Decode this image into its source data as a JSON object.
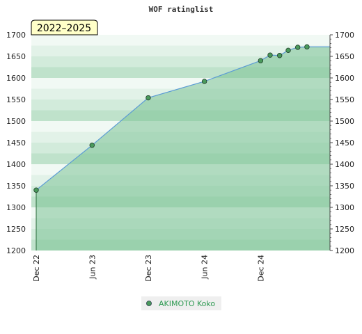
{
  "chart_data": {
    "type": "area",
    "title": "WOF ratinglist",
    "period_badge": "2022–2025",
    "ylim": [
      1200,
      1700
    ],
    "y_ticks": [
      1200,
      1250,
      1300,
      1350,
      1400,
      1450,
      1500,
      1550,
      1600,
      1650,
      1700
    ],
    "x_ticks": [
      {
        "label": "Dec 22",
        "date": "2022-12-01"
      },
      {
        "label": "Jun 23",
        "date": "2023-06-01"
      },
      {
        "label": "Dec 23",
        "date": "2023-12-01"
      },
      {
        "label": "Jun 24",
        "date": "2024-06-01"
      },
      {
        "label": "Dec 24",
        "date": "2024-12-01"
      }
    ],
    "xlim": [
      "2022-12-01",
      "2025-07-15"
    ],
    "series": [
      {
        "name": "AKIMOTO Koko",
        "points": [
          {
            "date": "2022-12-01",
            "value": 1340
          },
          {
            "date": "2023-06-01",
            "value": 1444
          },
          {
            "date": "2023-12-01",
            "value": 1554
          },
          {
            "date": "2024-06-01",
            "value": 1592
          },
          {
            "date": "2024-12-01",
            "value": 1640
          },
          {
            "date": "2025-01-01",
            "value": 1653
          },
          {
            "date": "2025-02-01",
            "value": 1652
          },
          {
            "date": "2025-03-01",
            "value": 1664
          },
          {
            "date": "2025-04-01",
            "value": 1671
          },
          {
            "date": "2025-05-01",
            "value": 1672
          }
        ]
      }
    ],
    "legend_position": "bottom-center",
    "colors": {
      "line": "#5b9bd5",
      "fill": "#7cc396",
      "marker": "#4a9a5c",
      "badge_bg": "#ffffc8"
    }
  }
}
